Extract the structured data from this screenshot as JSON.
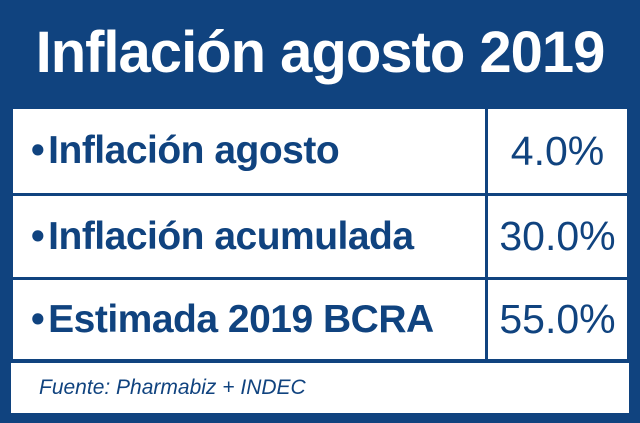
{
  "title": "Inflación agosto 2019",
  "rows": [
    {
      "bullet": "•",
      "label": "Inflación agosto",
      "value": "4.0%"
    },
    {
      "bullet": "•",
      "label": "Inflación acumulada",
      "value": "30.0%"
    },
    {
      "bullet": "•",
      "label": "Estimada 2019 BCRA",
      "value": "55.0%"
    }
  ],
  "source": "Fuente: Pharmabiz + INDEC",
  "colors": {
    "brand_blue": "#10437f",
    "background": "#ffffff"
  }
}
